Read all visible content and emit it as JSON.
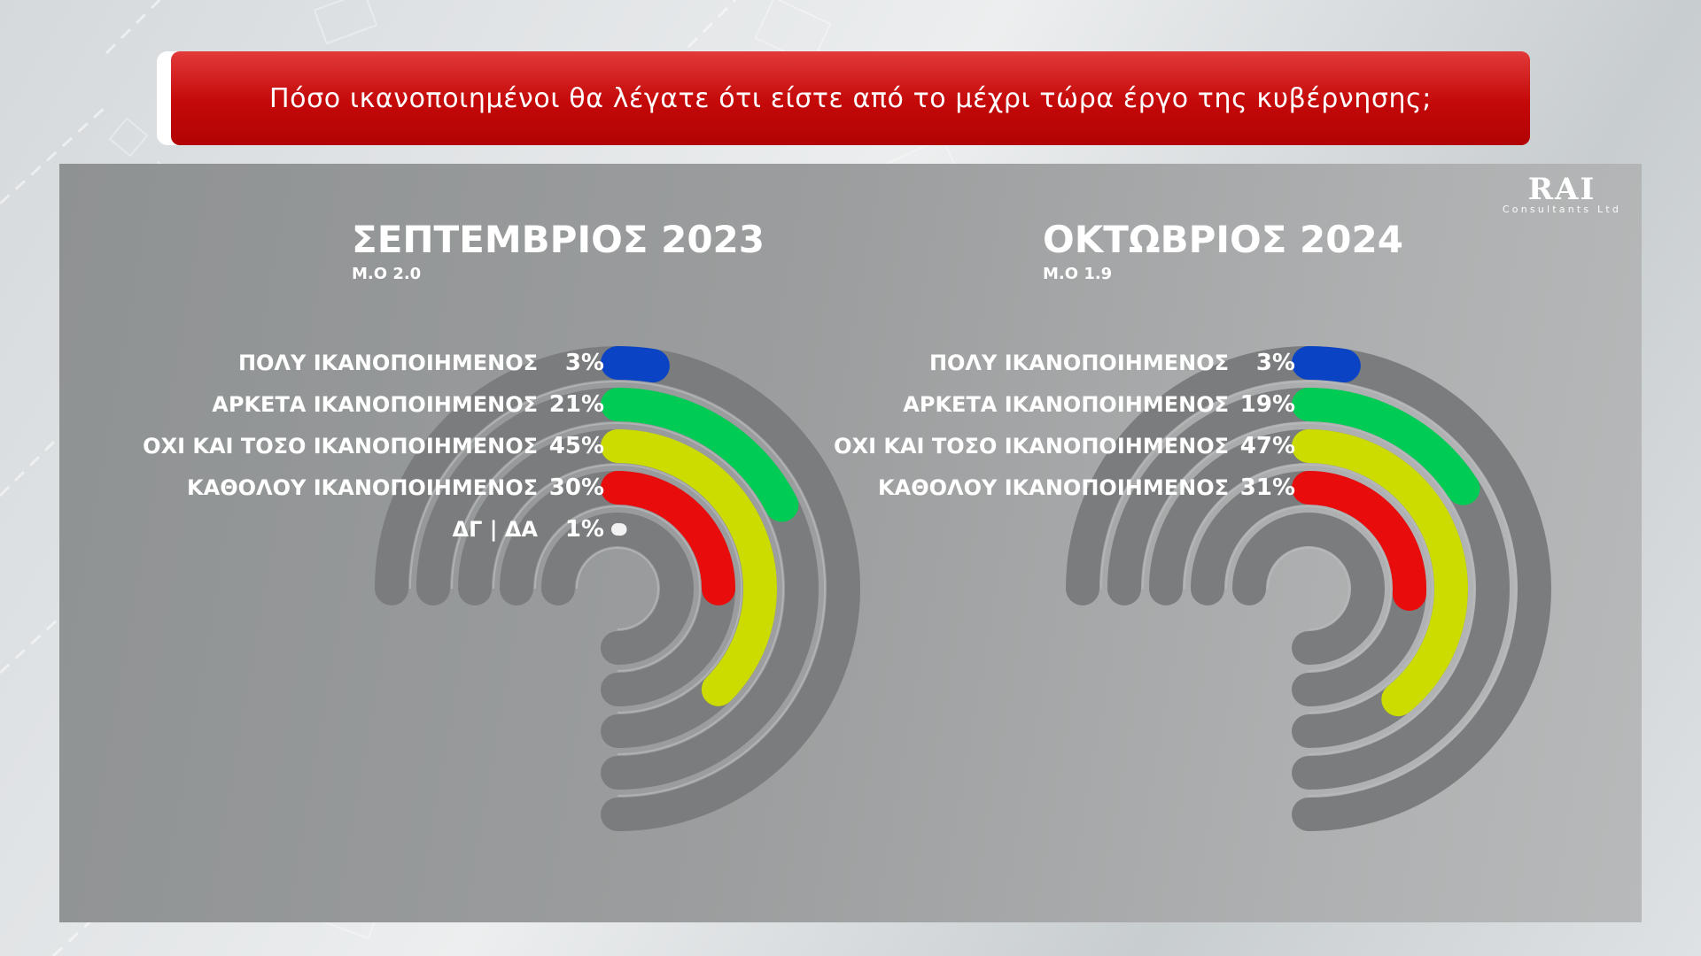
{
  "question": "Πόσο ικανοποιημένοι θα λέγατε ότι είστε από το μέχρι τώρα έργο της κυβέρνησης;",
  "logo": {
    "name": "RAI",
    "subtitle": "Consultants Ltd"
  },
  "colors": {
    "very_satisfied": "#0a44c4",
    "fairly_satisfied": "#00cc55",
    "not_so_satisfied": "#ccdc00",
    "not_at_all_satisfied": "#e80c0c",
    "dk_na": "#f2f2f2",
    "track": "#7a7c7d"
  },
  "chart_data": [
    {
      "type": "radial-bar",
      "title": "ΣΕΠΤΕΜΒΡΙΟΣ 2023",
      "subtitle": "Μ.Ο 2.0",
      "unit": "%",
      "categories": [
        "ΠΟΛΥ ΙΚΑΝΟΠΟΙΗΜΕΝΟΣ",
        "ΑΡΚΕΤΑ ΙΚΑΝΟΠΟΙΗΜΕΝΟΣ",
        "ΟΧΙ ΚΑΙ ΤΟΣΟ ΙΚΑΝΟΠΟΙΗΜΕΝΟΣ",
        "ΚΑΘΟΛΟΥ ΙΚΑΝΟΠΟΙΗΜΕΝΟΣ",
        "ΔΓ | ΔΑ"
      ],
      "values": [
        3,
        21,
        45,
        30,
        1
      ],
      "value_labels": [
        "3%",
        "21%",
        "45%",
        "30%",
        "1%"
      ],
      "color_keys": [
        "very_satisfied",
        "fairly_satisfied",
        "not_so_satisfied",
        "not_at_all_satisfied",
        "dk_na"
      ]
    },
    {
      "type": "radial-bar",
      "title": "ΟΚΤΩΒΡΙΟΣ 2024",
      "subtitle": "Μ.Ο 1.9",
      "unit": "%",
      "categories": [
        "ΠΟΛΥ ΙΚΑΝΟΠΟΙΗΜΕΝΟΣ",
        "ΑΡΚΕΤΑ ΙΚΑΝΟΠΟΙΗΜΕΝΟΣ",
        "ΟΧΙ ΚΑΙ ΤΟΣΟ ΙΚΑΝΟΠΟΙΗΜΕΝΟΣ",
        "ΚΑΘΟΛΟΥ ΙΚΑΝΟΠΟΙΗΜΕΝΟΣ"
      ],
      "values": [
        3,
        19,
        47,
        31
      ],
      "value_labels": [
        "3%",
        "19%",
        "47%",
        "31%"
      ],
      "color_keys": [
        "very_satisfied",
        "fairly_satisfied",
        "not_so_satisfied",
        "not_at_all_satisfied"
      ]
    }
  ]
}
